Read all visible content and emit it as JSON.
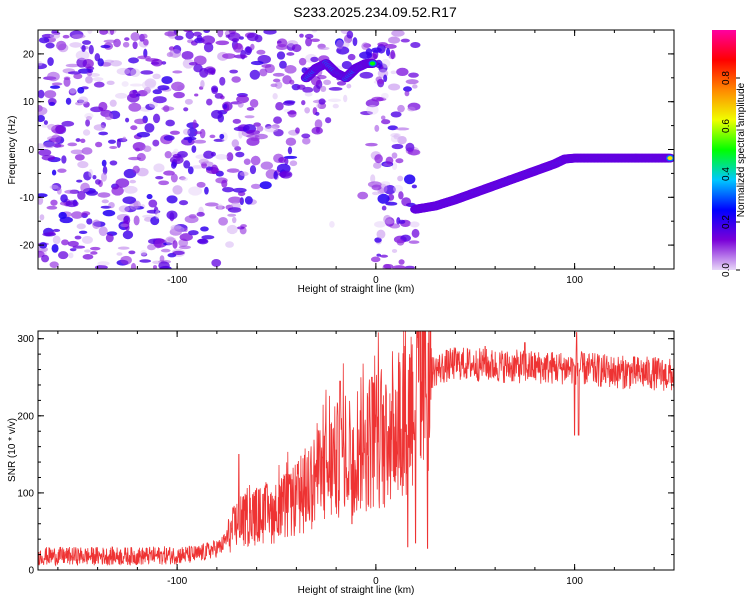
{
  "title": "S233.2025.234.09.52.R17",
  "chart_data": [
    {
      "type": "heatmap",
      "name": "spectrogram",
      "xlabel": "Height of straight line (km)",
      "ylabel": "Frequency (Hz)",
      "xlim": [
        -170,
        150
      ],
      "ylim": [
        -25,
        25
      ],
      "xticks": [
        -100,
        0,
        100
      ],
      "yticks": [
        -20,
        -10,
        0,
        10,
        20
      ],
      "grid": false,
      "noise_region_x": [
        -170,
        20
      ],
      "signal_track": {
        "x": [
          -35,
          -30,
          -25,
          -20,
          -15,
          -10,
          -5,
          -1,
          20,
          30,
          40,
          50,
          60,
          70,
          80,
          90,
          95,
          100,
          110,
          120,
          130,
          140,
          148
        ],
        "y": [
          15,
          17,
          18,
          16,
          15,
          17,
          18,
          18,
          -12.5,
          -11.8,
          -10.5,
          -9,
          -7.5,
          -6,
          -4.5,
          -3,
          -2,
          -1.8,
          -1.8,
          -1.8,
          -1.8,
          -1.8,
          -1.8
        ]
      },
      "colorbar": {
        "label": "Normalized spectral amplitude",
        "range": [
          0,
          1
        ],
        "ticks": [
          "0.0",
          "0.2",
          "0.4",
          "0.6",
          "0.8"
        ],
        "colors": [
          "#e8d8f8",
          "#7a00d8",
          "#0000ff",
          "#00c8ff",
          "#00ff00",
          "#f0ff00",
          "#ff8800",
          "#ff0000",
          "#ff00a0"
        ]
      }
    },
    {
      "type": "line",
      "name": "snr",
      "xlabel": "Height of straight line (km)",
      "ylabel": "SNR (10 * v/v)",
      "xlim": [
        -170,
        150
      ],
      "ylim": [
        0,
        310
      ],
      "xticks": [
        -100,
        0,
        100
      ],
      "yticks": [
        0,
        100,
        200,
        300
      ],
      "grid": false,
      "color": "#ee3333",
      "trend": {
        "x": [
          -170,
          -120,
          -90,
          -78,
          -70,
          -60,
          -50,
          -40,
          -30,
          -20,
          -10,
          0,
          10,
          20,
          25,
          30,
          40,
          60,
          80,
          100,
          120,
          140,
          150
        ],
        "y": [
          18,
          18,
          20,
          30,
          60,
          70,
          75,
          90,
          120,
          140,
          160,
          170,
          190,
          230,
          250,
          260,
          268,
          265,
          263,
          262,
          257,
          255,
          252
        ]
      },
      "spikes": [
        {
          "x": -69,
          "y": 150
        },
        {
          "x": -18,
          "y": 245
        },
        {
          "x": -2,
          "y": 250
        },
        {
          "x": 5,
          "y": 240
        },
        {
          "x": 101,
          "y": 308
        },
        {
          "x": 102,
          "y": 175
        },
        {
          "x": 75,
          "y": 295
        },
        {
          "x": 55,
          "y": 290
        }
      ],
      "dips": [
        {
          "x": 16,
          "y": 30
        },
        {
          "x": 20,
          "y": 35
        },
        {
          "x": 26,
          "y": 28
        },
        {
          "x": -12,
          "y": 60
        },
        {
          "x": 100,
          "y": 175
        }
      ]
    }
  ]
}
